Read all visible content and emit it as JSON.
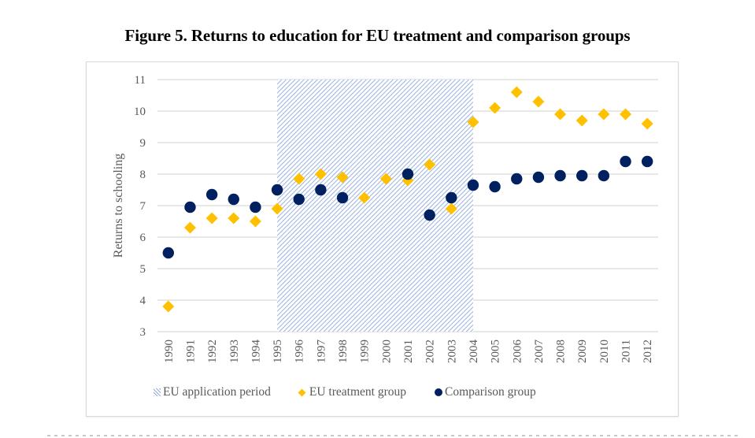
{
  "title": "Figure 5. Returns to education for EU treatment and comparison groups",
  "chart_data": {
    "type": "scatter",
    "title": "Figure 5. Returns to education for EU treatment and comparison groups",
    "xlabel": "",
    "ylabel": "Returns to schooling",
    "ylim": [
      3,
      11
    ],
    "yticks": [
      "3",
      "4",
      "5",
      "6",
      "7",
      "8",
      "9",
      "10",
      "11"
    ],
    "grid": true,
    "legend_position": "bottom",
    "categories": [
      "1990",
      "1991",
      "1992",
      "1993",
      "1994",
      "1995",
      "1996",
      "1997",
      "1998",
      "1999",
      "2000",
      "2001",
      "2002",
      "2003",
      "2004",
      "2005",
      "2006",
      "2007",
      "2008",
      "2009",
      "2010",
      "2011",
      "2012"
    ],
    "shaded_region": {
      "name": "EU application period",
      "from": "1995",
      "to": "2004",
      "color": "#8faadc",
      "pattern": "diagonal-hatch"
    },
    "series": [
      {
        "name": "EU treatment group",
        "marker": "diamond",
        "color": "#ffc000",
        "values": [
          3.8,
          6.3,
          6.6,
          6.6,
          6.5,
          6.9,
          7.85,
          8.0,
          7.9,
          7.25,
          7.85,
          7.8,
          8.3,
          6.9,
          9.65,
          10.1,
          10.6,
          10.3,
          9.9,
          9.7,
          9.9,
          9.9,
          9.6
        ]
      },
      {
        "name": "Comparison group",
        "marker": "circle",
        "color": "#002060",
        "values": [
          5.5,
          6.95,
          7.35,
          7.2,
          6.95,
          7.5,
          7.2,
          7.5,
          7.25,
          null,
          null,
          8.0,
          6.7,
          7.25,
          7.65,
          7.6,
          7.85,
          7.9,
          7.95,
          7.95,
          7.95,
          8.4,
          8.4
        ]
      }
    ]
  },
  "legend": {
    "items": [
      {
        "label": "EU application period",
        "icon": "hatch-swatch"
      },
      {
        "label": "EU treatment group",
        "icon": "diamond-marker"
      },
      {
        "label": "Comparison group",
        "icon": "circle-marker"
      }
    ]
  }
}
